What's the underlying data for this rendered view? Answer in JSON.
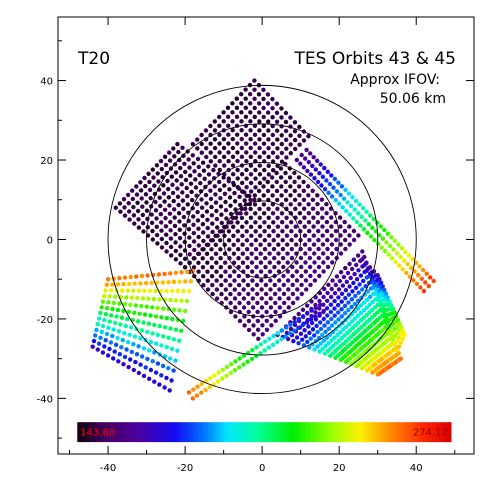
{
  "chart_data": {
    "type": "scatter",
    "panel_label": "T20",
    "title": "TES Orbits 43 & 45",
    "annotation_line1": "Approx IFOV:",
    "annotation_line2": "50.06 km",
    "xlim": [
      -53,
      55
    ],
    "ylim": [
      -54,
      56
    ],
    "x_ticks": [
      -40,
      -20,
      0,
      20,
      40
    ],
    "y_ticks": [
      -40,
      -20,
      0,
      20,
      40
    ],
    "range_rings": [
      10,
      20,
      30,
      40
    ],
    "colorbar": {
      "min_label": "143.60",
      "max_label": "274.17",
      "min_value": 143.6,
      "max_value": 274.17,
      "x_range": [
        -48,
        49
      ],
      "y_range": [
        -51,
        -46
      ]
    },
    "colors": {
      "low_label": "#ff0000",
      "high_label": "#990000",
      "axis": "#000000"
    },
    "swaths": [
      {
        "name": "",
        "corners": [
          [
            -20,
            -7
          ],
          [
            6,
            19
          ],
          [
            25,
            1
          ],
          [
            -1,
            -25
          ]
        ],
        "t_start": 0.04,
        "t_end": 0.12,
        "t_end_edge": 0.14,
        "spacing": 1.6
      },
      {
        "name": "",
        "corners": [
          [
            -4,
            11
          ],
          [
            12,
            26
          ],
          [
            -2,
            40
          ],
          [
            -18,
            24
          ]
        ],
        "t_start": 0.05,
        "t_end": 0.05,
        "spacing": 1.6
      },
      {
        "name": "",
        "corners": [
          [
            -20,
            -7
          ],
          [
            -2,
            10
          ],
          [
            -22,
            24
          ],
          [
            -38,
            8
          ]
        ],
        "t_start": 0.05,
        "t_end": 0.05,
        "spacing": 1.6
      },
      {
        "name": "",
        "corners": [
          [
            -40,
            -10
          ],
          [
            -18,
            -8
          ],
          [
            -24,
            -38
          ],
          [
            -44,
            -27
          ]
        ],
        "t_start": 0.85,
        "t_end": 0.22,
        "t_end_edge": 0.22,
        "spacing": 1.5
      },
      {
        "name": "",
        "corners": [
          [
            4,
            -24
          ],
          [
            26,
            -3
          ],
          [
            36,
            -30
          ],
          [
            30,
            -34
          ]
        ],
        "t_start": 0.12,
        "t_end": 0.86,
        "spacing": 1.5
      },
      {
        "name": "",
        "corners": [
          [
            26,
            -5
          ],
          [
            30,
            -9
          ],
          [
            37,
            -24
          ],
          [
            35,
            -28
          ]
        ],
        "t_start": 0.18,
        "t_end": 0.78,
        "spacing": 1.5
      }
    ],
    "lines": [
      {
        "name": "",
        "x": [
          9,
          42
        ],
        "y": [
          20,
          -13
        ],
        "t_start": 0.12,
        "t_end": 0.92,
        "widths": [
          0,
          1.8,
          3.6
        ]
      },
      {
        "name": "",
        "x": [
          -18,
          16
        ],
        "y": [
          -40,
          -18
        ],
        "t_start": 0.88,
        "t_end": 0.16,
        "widths": [
          0,
          1.8
        ]
      }
    ]
  }
}
